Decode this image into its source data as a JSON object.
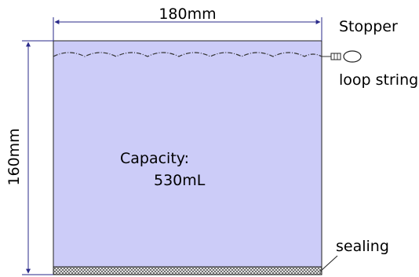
{
  "dimensions": {
    "width_label": "180mm",
    "height_label": "160mm"
  },
  "labels": {
    "stopper": "Stopper",
    "loop_string": "loop string",
    "sealing": "sealing",
    "capacity_line1": "Capacity:",
    "capacity_line2": "530mL"
  },
  "colors": {
    "bag_fill": "#ccccf8",
    "dimension_line": "#2a2a8a",
    "drawstring": "#333333",
    "sealing_hatch": "#555555"
  },
  "icons": [
    "stopper-icon",
    "loop-string-icon",
    "arrow-icon"
  ]
}
